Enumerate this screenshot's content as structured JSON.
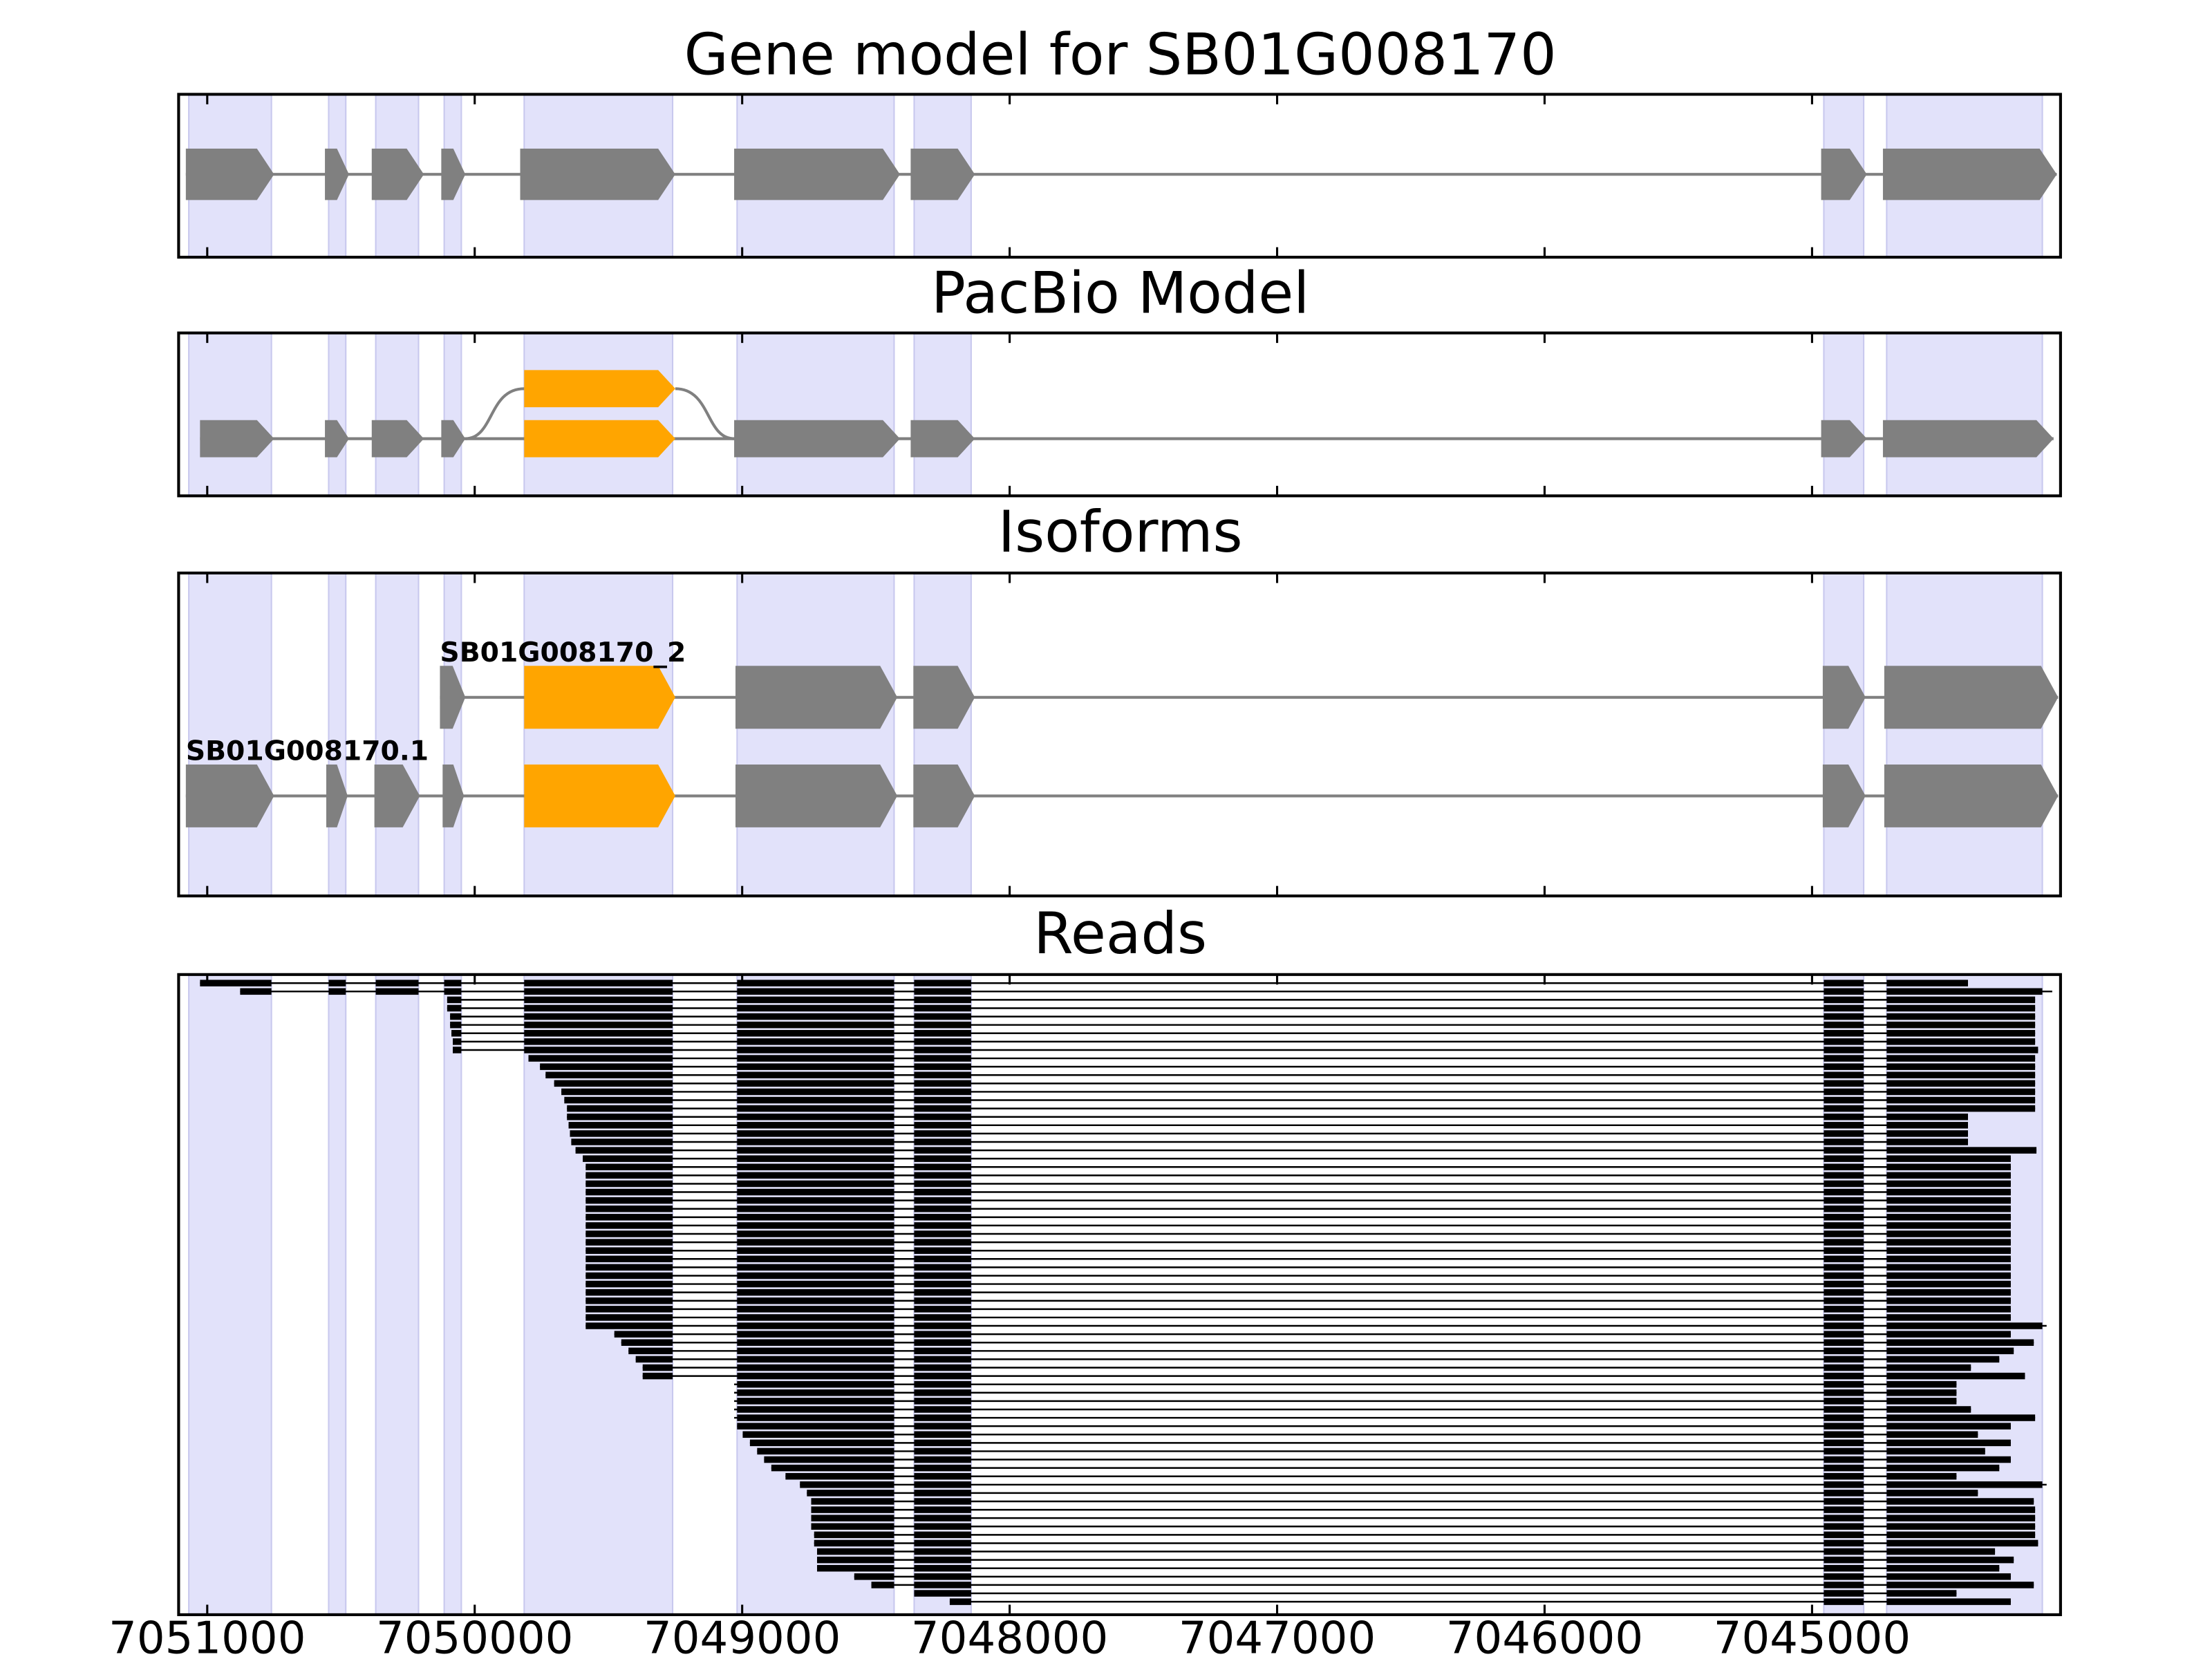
{
  "chart_data": {
    "type": "gene_tracks",
    "xlim": [
      7051107,
      7044071
    ],
    "xticks": [
      7051000,
      7050000,
      7049000,
      7048000,
      7047000,
      7046000,
      7045000
    ],
    "region_color": "#e2e2fa",
    "exon_color": "#808080",
    "alt_color": "#ffa500",
    "read_color": "#000000",
    "exon_regions": [
      [
        7051069,
        7050760
      ],
      [
        7050546,
        7050482
      ],
      [
        7050370,
        7050210
      ],
      [
        7050114,
        7050050
      ],
      [
        7049815,
        7049260
      ],
      [
        7049019,
        7048432
      ],
      [
        7048357,
        7048144
      ],
      [
        7044956,
        7044807
      ],
      [
        7044721,
        7044139
      ]
    ],
    "panels": [
      {
        "title": "Gene model for SB01G008170",
        "transcripts": [
          {
            "exons": [
              [
                7051080,
                7050750
              ],
              [
                7050560,
                7050470
              ],
              [
                7050385,
                7050190
              ],
              [
                7050125,
                7050035
              ],
              [
                7049830,
                7049250
              ],
              [
                7049030,
                7048410
              ],
              [
                7048370,
                7048130
              ],
              [
                7044966,
                7044795
              ],
              [
                7044735,
                7044085
              ]
            ]
          }
        ]
      },
      {
        "title": "PacBio Model",
        "transcripts": [
          {
            "exons": [
              [
                7051027,
                7050750
              ],
              [
                7050560,
                7050470
              ],
              [
                7050385,
                7050190
              ],
              [
                7050125,
                7050035
              ],
              [
                7049815,
                7049250
              ],
              [
                7049030,
                7048410
              ],
              [
                7048370,
                7048130
              ],
              [
                7044966,
                7044795
              ],
              [
                7044735,
                7044097
              ]
            ],
            "alt_exon": 4,
            "alt_exons": [
              [
                7049815,
                7049250
              ]
            ]
          }
        ]
      },
      {
        "title": "Isoforms",
        "transcripts": [
          {
            "name": "SB01G008170_2",
            "exons": [
              [
                7050130,
                7050035
              ],
              [
                7049815,
                7049250
              ],
              [
                7049025,
                7048420
              ],
              [
                7048360,
                7048130
              ],
              [
                7044960,
                7044800
              ],
              [
                7044730,
                7044080
              ]
            ],
            "alt_exon": 1
          },
          {
            "name": "SB01G008170.1",
            "exons": [
              [
                7051080,
                7050750
              ],
              [
                7050555,
                7050475
              ],
              [
                7050375,
                7050205
              ],
              [
                7050120,
                7050040
              ],
              [
                7049815,
                7049250
              ],
              [
                7049025,
                7048420
              ],
              [
                7048360,
                7048130
              ],
              [
                7044960,
                7044800
              ],
              [
                7044730,
                7044080
              ]
            ],
            "alt_exon": 4
          }
        ]
      },
      {
        "title": "Reads",
        "reads": [
          [
            7051027,
            7044417
          ],
          [
            7050877,
            7044102
          ],
          [
            7050103,
            7044166
          ],
          [
            7050103,
            7044166
          ],
          [
            7050092,
            7044166
          ],
          [
            7050092,
            7044166
          ],
          [
            7050087,
            7044166
          ],
          [
            7050082,
            7044166
          ],
          [
            7050082,
            7044155
          ],
          [
            7049799,
            7044166
          ],
          [
            7049756,
            7044166
          ],
          [
            7049735,
            7044166
          ],
          [
            7049703,
            7044166
          ],
          [
            7049676,
            7044166
          ],
          [
            7049665,
            7044166
          ],
          [
            7049655,
            7044166
          ],
          [
            7049655,
            7044417
          ],
          [
            7049649,
            7044417
          ],
          [
            7049644,
            7044417
          ],
          [
            7049639,
            7044417
          ],
          [
            7049623,
            7044161
          ],
          [
            7049596,
            7044257
          ],
          [
            7049585,
            7044257
          ],
          [
            7049585,
            7044257
          ],
          [
            7049585,
            7044257
          ],
          [
            7049585,
            7044257
          ],
          [
            7049585,
            7044257
          ],
          [
            7049585,
            7044257
          ],
          [
            7049585,
            7044257
          ],
          [
            7049585,
            7044257
          ],
          [
            7049585,
            7044257
          ],
          [
            7049585,
            7044257
          ],
          [
            7049585,
            7044257
          ],
          [
            7049585,
            7044257
          ],
          [
            7049585,
            7044257
          ],
          [
            7049585,
            7044257
          ],
          [
            7049585,
            7044257
          ],
          [
            7049585,
            7044257
          ],
          [
            7049585,
            7044257
          ],
          [
            7049585,
            7044257
          ],
          [
            7049585,
            7044257
          ],
          [
            7049585,
            7044123
          ],
          [
            7049478,
            7044257
          ],
          [
            7049452,
            7044171
          ],
          [
            7049425,
            7044246
          ],
          [
            7049398,
            7044300
          ],
          [
            7049372,
            7044406
          ],
          [
            7049372,
            7044204
          ],
          [
            7049030,
            7044460
          ],
          [
            7049030,
            7044460
          ],
          [
            7049030,
            7044460
          ],
          [
            7049030,
            7044406
          ],
          [
            7049030,
            7044166
          ],
          [
            7049019,
            7044257
          ],
          [
            7048998,
            7044380
          ],
          [
            7048971,
            7044257
          ],
          [
            7048944,
            7044353
          ],
          [
            7048918,
            7044257
          ],
          [
            7048891,
            7044300
          ],
          [
            7048838,
            7044460
          ],
          [
            7048784,
            7044123
          ],
          [
            7048758,
            7044380
          ],
          [
            7048742,
            7044171
          ],
          [
            7048742,
            7044166
          ],
          [
            7048742,
            7044166
          ],
          [
            7048742,
            7044166
          ],
          [
            7048731,
            7044166
          ],
          [
            7048731,
            7044155
          ],
          [
            7048720,
            7044316
          ],
          [
            7048720,
            7044246
          ],
          [
            7048720,
            7044300
          ],
          [
            7048581,
            7044257
          ],
          [
            7048517,
            7044171
          ],
          [
            7048357,
            7044460
          ],
          [
            7048224,
            7044257
          ]
        ]
      }
    ]
  }
}
